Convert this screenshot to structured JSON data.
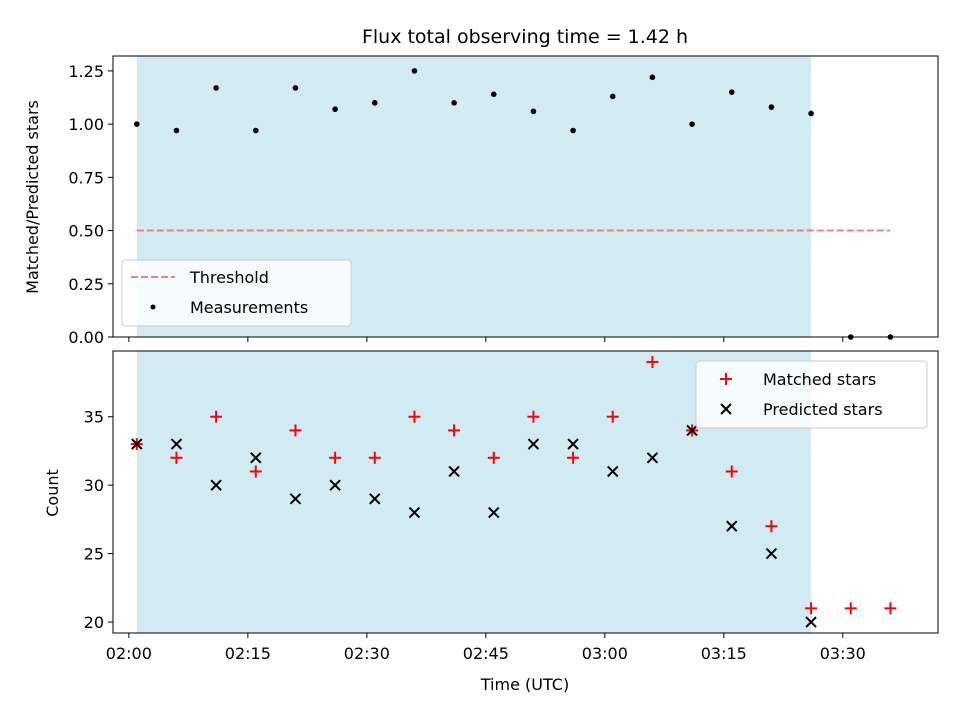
{
  "chart_data": [
    {
      "type": "scatter",
      "title": "Flux total observing time = 1.42 h",
      "ylabel": "Matched/Predicted stars",
      "ylim": [
        0,
        1.32
      ],
      "yticks": [
        0.0,
        0.25,
        0.5,
        0.75,
        1.0,
        1.25
      ],
      "ytick_labels": [
        "0.00",
        "0.25",
        "0.50",
        "0.75",
        "1.00",
        "1.25"
      ],
      "shaded_span": [
        "02:01",
        "03:26"
      ],
      "shade_color": "#add8e6",
      "threshold": {
        "name": "Threshold",
        "value": 0.5,
        "x_range": [
          "02:01",
          "03:36"
        ],
        "color": "#f08080"
      },
      "series": [
        {
          "name": "Measurements",
          "color": "#000000",
          "x": [
            "02:01",
            "02:06",
            "02:11",
            "02:16",
            "02:21",
            "02:26",
            "02:31",
            "02:36",
            "02:41",
            "02:46",
            "02:51",
            "02:56",
            "03:01",
            "03:06",
            "03:11",
            "03:16",
            "03:21",
            "03:26",
            "03:31",
            "03:36"
          ],
          "y": [
            1.0,
            0.97,
            1.17,
            0.97,
            1.17,
            1.07,
            1.1,
            1.25,
            1.1,
            1.14,
            1.06,
            0.97,
            1.13,
            1.22,
            1.0,
            1.15,
            1.08,
            1.05,
            0.0,
            0.0
          ]
        }
      ],
      "legend": [
        "Threshold",
        "Measurements"
      ],
      "legend_position": "lower-left"
    },
    {
      "type": "scatter",
      "xlabel": "Time (UTC)",
      "ylabel": "Count",
      "ylim": [
        19.2,
        39.8
      ],
      "yticks": [
        20,
        25,
        30,
        35
      ],
      "ytick_labels": [
        "20",
        "25",
        "30",
        "35"
      ],
      "xlim": [
        "01:58",
        "03:42"
      ],
      "xticks": [
        "02:00",
        "02:15",
        "02:30",
        "02:45",
        "03:00",
        "03:15",
        "03:30"
      ],
      "shaded_span": [
        "02:01",
        "03:26"
      ],
      "shade_color": "#add8e6",
      "series": [
        {
          "name": "Matched stars",
          "marker": "plus",
          "color": "#ff0000",
          "x": [
            "02:01",
            "02:06",
            "02:11",
            "02:16",
            "02:21",
            "02:26",
            "02:31",
            "02:36",
            "02:41",
            "02:46",
            "02:51",
            "02:56",
            "03:01",
            "03:06",
            "03:11",
            "03:16",
            "03:21",
            "03:26",
            "03:31",
            "03:36"
          ],
          "y": [
            33,
            32,
            35,
            31,
            34,
            32,
            32,
            35,
            34,
            32,
            35,
            32,
            35,
            39,
            34,
            31,
            27,
            21,
            21,
            21
          ]
        },
        {
          "name": "Predicted stars",
          "marker": "x",
          "color": "#000000",
          "x": [
            "02:01",
            "02:06",
            "02:11",
            "02:16",
            "02:21",
            "02:26",
            "02:31",
            "02:36",
            "02:41",
            "02:46",
            "02:51",
            "02:56",
            "03:01",
            "03:06",
            "03:11",
            "03:16",
            "03:21",
            "03:26"
          ],
          "y": [
            33,
            33,
            30,
            32,
            29,
            30,
            29,
            28,
            31,
            28,
            33,
            33,
            31,
            32,
            34,
            27,
            25,
            20
          ]
        }
      ],
      "legend": [
        "Matched stars",
        "Predicted stars"
      ],
      "legend_position": "top-right"
    }
  ]
}
